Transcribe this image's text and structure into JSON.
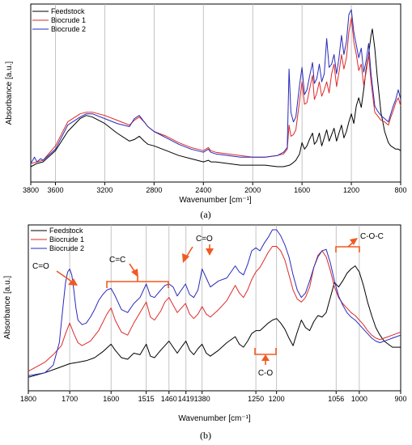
{
  "chart_data": [
    {
      "type": "line",
      "panel_label": "(a)",
      "xlabel": "Wavenumber [cm⁻¹]",
      "ylabel": "Absorbance [a.u.]",
      "xlim": [
        3800,
        800
      ],
      "x_reversed": true,
      "ylim": [
        0,
        1
      ],
      "xticks": [
        "3800",
        "3600",
        "3200",
        "2800",
        "2400",
        "2000",
        "1600",
        "1200",
        "800"
      ],
      "vlines": [
        3600,
        3200,
        2800,
        2400,
        2000,
        1600,
        1200
      ],
      "legend_position": "top-left",
      "series": [
        {
          "name": "Feedstock",
          "color": "#000000",
          "x": [
            3800,
            3750,
            3700,
            3600,
            3500,
            3400,
            3350,
            3300,
            3200,
            3100,
            3000,
            2960,
            2920,
            2880,
            2850,
            2800,
            2700,
            2600,
            2500,
            2400,
            2360,
            2340,
            2300,
            2200,
            2100,
            2000,
            1900,
            1800,
            1750,
            1700,
            1680,
            1650,
            1620,
            1600,
            1580,
            1560,
            1540,
            1515,
            1500,
            1480,
            1460,
            1440,
            1420,
            1400,
            1380,
            1360,
            1340,
            1320,
            1300,
            1280,
            1260,
            1240,
            1220,
            1200,
            1180,
            1160,
            1140,
            1120,
            1100,
            1080,
            1060,
            1040,
            1030,
            1010,
            990,
            960,
            930,
            900,
            880,
            860,
            840,
            820,
            800
          ],
          "y": [
            0.02,
            0.04,
            0.05,
            0.12,
            0.24,
            0.32,
            0.34,
            0.33,
            0.29,
            0.23,
            0.18,
            0.19,
            0.21,
            0.18,
            0.16,
            0.15,
            0.12,
            0.09,
            0.07,
            0.05,
            0.06,
            0.05,
            0.05,
            0.04,
            0.03,
            0.03,
            0.03,
            0.02,
            0.02,
            0.03,
            0.04,
            0.06,
            0.1,
            0.17,
            0.13,
            0.15,
            0.19,
            0.23,
            0.16,
            0.18,
            0.23,
            0.15,
            0.2,
            0.25,
            0.18,
            0.22,
            0.26,
            0.18,
            0.23,
            0.28,
            0.2,
            0.24,
            0.3,
            0.35,
            0.29,
            0.4,
            0.45,
            0.39,
            0.5,
            0.63,
            0.72,
            0.84,
            0.88,
            0.76,
            0.58,
            0.36,
            0.24,
            0.17,
            0.15,
            0.14,
            0.13,
            0.13,
            0.12
          ]
        },
        {
          "name": "Biocrude 1",
          "color": "#dd2a2a",
          "x": [
            3800,
            3750,
            3700,
            3600,
            3500,
            3400,
            3350,
            3300,
            3200,
            3100,
            3000,
            2960,
            2920,
            2880,
            2850,
            2800,
            2700,
            2600,
            2500,
            2400,
            2360,
            2340,
            2300,
            2200,
            2100,
            2000,
            1900,
            1800,
            1750,
            1720,
            1705,
            1690,
            1670,
            1650,
            1620,
            1600,
            1580,
            1560,
            1540,
            1515,
            1500,
            1480,
            1460,
            1440,
            1420,
            1400,
            1380,
            1360,
            1340,
            1320,
            1300,
            1280,
            1260,
            1240,
            1220,
            1200,
            1180,
            1160,
            1140,
            1120,
            1100,
            1080,
            1060,
            1040,
            1010,
            990,
            960,
            930,
            900,
            880,
            860,
            840,
            820,
            800
          ],
          "y": [
            0.04,
            0.05,
            0.06,
            0.15,
            0.3,
            0.35,
            0.36,
            0.36,
            0.34,
            0.31,
            0.28,
            0.31,
            0.33,
            0.3,
            0.27,
            0.24,
            0.21,
            0.17,
            0.14,
            0.12,
            0.14,
            0.12,
            0.11,
            0.1,
            0.09,
            0.08,
            0.08,
            0.09,
            0.1,
            0.13,
            0.28,
            0.21,
            0.22,
            0.25,
            0.43,
            0.55,
            0.41,
            0.42,
            0.5,
            0.59,
            0.44,
            0.48,
            0.55,
            0.46,
            0.5,
            0.55,
            0.48,
            0.6,
            0.66,
            0.52,
            0.61,
            0.72,
            0.63,
            0.7,
            0.86,
            0.95,
            0.8,
            0.72,
            0.62,
            0.66,
            0.53,
            0.61,
            0.72,
            0.55,
            0.36,
            0.34,
            0.31,
            0.3,
            0.28,
            0.33,
            0.37,
            0.42,
            0.45,
            0.4
          ]
        },
        {
          "name": "Biocrude 2",
          "color": "#2929bb",
          "x": [
            3800,
            3770,
            3750,
            3720,
            3700,
            3600,
            3500,
            3400,
            3350,
            3300,
            3200,
            3100,
            3000,
            2960,
            2920,
            2880,
            2850,
            2800,
            2700,
            2600,
            2500,
            2400,
            2360,
            2340,
            2300,
            2200,
            2100,
            2000,
            1900,
            1800,
            1750,
            1720,
            1705,
            1690,
            1670,
            1650,
            1620,
            1600,
            1580,
            1560,
            1540,
            1515,
            1500,
            1480,
            1460,
            1440,
            1420,
            1400,
            1380,
            1360,
            1340,
            1320,
            1300,
            1280,
            1260,
            1240,
            1220,
            1200,
            1180,
            1160,
            1140,
            1120,
            1100,
            1080,
            1060,
            1040,
            1010,
            990,
            960,
            930,
            900,
            880,
            860,
            840,
            820,
            800
          ],
          "y": [
            0.04,
            0.08,
            0.05,
            0.07,
            0.06,
            0.13,
            0.28,
            0.33,
            0.35,
            0.35,
            0.32,
            0.29,
            0.27,
            0.32,
            0.34,
            0.3,
            0.27,
            0.24,
            0.2,
            0.16,
            0.13,
            0.11,
            0.13,
            0.11,
            0.1,
            0.09,
            0.08,
            0.08,
            0.08,
            0.09,
            0.11,
            0.14,
            0.63,
            0.36,
            0.3,
            0.33,
            0.53,
            0.64,
            0.47,
            0.5,
            0.58,
            0.67,
            0.54,
            0.57,
            0.66,
            0.55,
            0.6,
            0.82,
            0.64,
            0.66,
            0.72,
            0.6,
            0.7,
            0.84,
            0.72,
            0.8,
            0.97,
            1.0,
            0.86,
            0.78,
            0.7,
            0.76,
            0.61,
            0.68,
            0.79,
            0.6,
            0.4,
            0.37,
            0.34,
            0.32,
            0.3,
            0.35,
            0.4,
            0.44,
            0.5,
            0.44
          ]
        }
      ]
    },
    {
      "type": "line",
      "panel_label": "(b)",
      "xlabel": "Wavenumber [cm⁻¹]",
      "ylabel": "Absorbance [a.u.]",
      "xlim": [
        1800,
        900
      ],
      "x_reversed": true,
      "ylim": [
        0,
        1
      ],
      "xticks": [
        "1800",
        "1700",
        "1600",
        "1515",
        "1460",
        "1419",
        "1380",
        "1250",
        "1200",
        "1056",
        "1000",
        "900"
      ],
      "vlines": [
        1700,
        1600,
        1515,
        1460,
        1419,
        1380,
        1250,
        1200,
        1056,
        1000
      ],
      "legend_position": "top-left",
      "annotations": [
        {
          "text": "C=O",
          "x": 1705,
          "position": "upper-left",
          "arrow": true
        },
        {
          "text": "C=C",
          "range": [
            1600,
            1460
          ],
          "bracket": "above"
        },
        {
          "text": "C=O",
          "x": 1380,
          "position": "upper",
          "arrow": true
        },
        {
          "text": "C-O-C",
          "range": [
            1056,
            1000
          ],
          "bracket": "above"
        },
        {
          "text": "C-O",
          "range": [
            1250,
            1200
          ],
          "bracket": "below"
        }
      ],
      "series": [
        {
          "name": "Feedstock",
          "color": "#000000",
          "x": [
            1800,
            1760,
            1730,
            1700,
            1680,
            1660,
            1640,
            1620,
            1600,
            1590,
            1575,
            1560,
            1545,
            1530,
            1515,
            1505,
            1495,
            1480,
            1470,
            1460,
            1450,
            1440,
            1430,
            1419,
            1410,
            1400,
            1390,
            1380,
            1370,
            1360,
            1340,
            1320,
            1300,
            1290,
            1280,
            1270,
            1260,
            1250,
            1240,
            1220,
            1210,
            1200,
            1190,
            1180,
            1170,
            1160,
            1150,
            1140,
            1130,
            1120,
            1110,
            1100,
            1090,
            1080,
            1070,
            1060,
            1050,
            1040,
            1030,
            1020,
            1010,
            1000,
            990,
            980,
            970,
            960,
            950,
            940,
            930,
            920,
            910,
            900
          ],
          "y": [
            0.02,
            0.05,
            0.08,
            0.11,
            0.12,
            0.13,
            0.15,
            0.19,
            0.24,
            0.2,
            0.15,
            0.14,
            0.18,
            0.17,
            0.24,
            0.16,
            0.15,
            0.2,
            0.23,
            0.26,
            0.22,
            0.18,
            0.22,
            0.26,
            0.2,
            0.17,
            0.21,
            0.24,
            0.18,
            0.16,
            0.2,
            0.25,
            0.29,
            0.24,
            0.22,
            0.26,
            0.31,
            0.33,
            0.33,
            0.38,
            0.4,
            0.41,
            0.38,
            0.34,
            0.28,
            0.23,
            0.32,
            0.4,
            0.35,
            0.33,
            0.39,
            0.43,
            0.42,
            0.45,
            0.55,
            0.65,
            0.62,
            0.66,
            0.71,
            0.74,
            0.76,
            0.72,
            0.63,
            0.52,
            0.43,
            0.35,
            0.3,
            0.26,
            0.24,
            0.22,
            0.22,
            0.22
          ]
        },
        {
          "name": "Biocrude 1",
          "color": "#dd2a2a",
          "x": [
            1800,
            1760,
            1740,
            1720,
            1710,
            1700,
            1690,
            1680,
            1670,
            1650,
            1630,
            1610,
            1600,
            1590,
            1575,
            1560,
            1545,
            1530,
            1515,
            1505,
            1495,
            1480,
            1470,
            1460,
            1450,
            1440,
            1430,
            1420,
            1410,
            1400,
            1390,
            1380,
            1370,
            1360,
            1340,
            1320,
            1300,
            1290,
            1280,
            1270,
            1260,
            1250,
            1240,
            1230,
            1220,
            1210,
            1200,
            1190,
            1180,
            1170,
            1160,
            1150,
            1140,
            1130,
            1120,
            1110,
            1100,
            1090,
            1080,
            1070,
            1060,
            1050,
            1040,
            1030,
            1020,
            1010,
            1000,
            990,
            980,
            970,
            960,
            950,
            940,
            930,
            920,
            910,
            900
          ],
          "y": [
            0.06,
            0.12,
            0.17,
            0.23,
            0.31,
            0.38,
            0.31,
            0.25,
            0.23,
            0.26,
            0.33,
            0.44,
            0.48,
            0.4,
            0.32,
            0.3,
            0.38,
            0.45,
            0.52,
            0.42,
            0.4,
            0.46,
            0.52,
            0.55,
            0.5,
            0.45,
            0.48,
            0.51,
            0.44,
            0.41,
            0.44,
            0.49,
            0.44,
            0.42,
            0.47,
            0.53,
            0.63,
            0.58,
            0.55,
            0.6,
            0.67,
            0.72,
            0.75,
            0.8,
            0.85,
            0.89,
            0.89,
            0.86,
            0.8,
            0.7,
            0.6,
            0.54,
            0.52,
            0.55,
            0.62,
            0.75,
            0.83,
            0.86,
            0.82,
            0.73,
            0.62,
            0.55,
            0.51,
            0.48,
            0.45,
            0.43,
            0.4,
            0.37,
            0.33,
            0.3,
            0.28,
            0.27,
            0.28,
            0.29,
            0.3,
            0.31,
            0.32
          ]
        },
        {
          "name": "Biocrude 2",
          "color": "#2929bb",
          "x": [
            1800,
            1780,
            1760,
            1740,
            1725,
            1715,
            1710,
            1705,
            1700,
            1695,
            1690,
            1685,
            1680,
            1670,
            1660,
            1650,
            1640,
            1630,
            1620,
            1610,
            1600,
            1590,
            1575,
            1560,
            1545,
            1530,
            1515,
            1505,
            1495,
            1480,
            1470,
            1460,
            1450,
            1440,
            1430,
            1420,
            1410,
            1400,
            1390,
            1380,
            1370,
            1360,
            1340,
            1320,
            1300,
            1290,
            1280,
            1270,
            1260,
            1250,
            1240,
            1230,
            1220,
            1210,
            1200,
            1190,
            1180,
            1170,
            1160,
            1150,
            1140,
            1130,
            1120,
            1110,
            1100,
            1090,
            1080,
            1070,
            1060,
            1050,
            1040,
            1030,
            1020,
            1010,
            1000,
            990,
            980,
            970,
            960,
            950,
            940,
            930,
            920,
            910,
            900
          ],
          "y": [
            0.03,
            0.04,
            0.05,
            0.1,
            0.25,
            0.52,
            0.65,
            0.72,
            0.74,
            0.7,
            0.6,
            0.48,
            0.4,
            0.37,
            0.38,
            0.42,
            0.47,
            0.53,
            0.57,
            0.6,
            0.61,
            0.56,
            0.47,
            0.45,
            0.51,
            0.55,
            0.64,
            0.56,
            0.55,
            0.6,
            0.63,
            0.64,
            0.62,
            0.56,
            0.6,
            0.64,
            0.57,
            0.55,
            0.6,
            0.74,
            0.68,
            0.62,
            0.66,
            0.68,
            0.76,
            0.72,
            0.7,
            0.77,
            0.86,
            0.88,
            0.86,
            0.91,
            0.95,
            1.0,
            1.0,
            0.96,
            0.9,
            0.82,
            0.7,
            0.6,
            0.55,
            0.58,
            0.66,
            0.75,
            0.82,
            0.86,
            0.87,
            0.78,
            0.66,
            0.56,
            0.5,
            0.45,
            0.42,
            0.4,
            0.37,
            0.34,
            0.31,
            0.28,
            0.26,
            0.25,
            0.26,
            0.27,
            0.28,
            0.29,
            0.3
          ]
        }
      ]
    }
  ]
}
